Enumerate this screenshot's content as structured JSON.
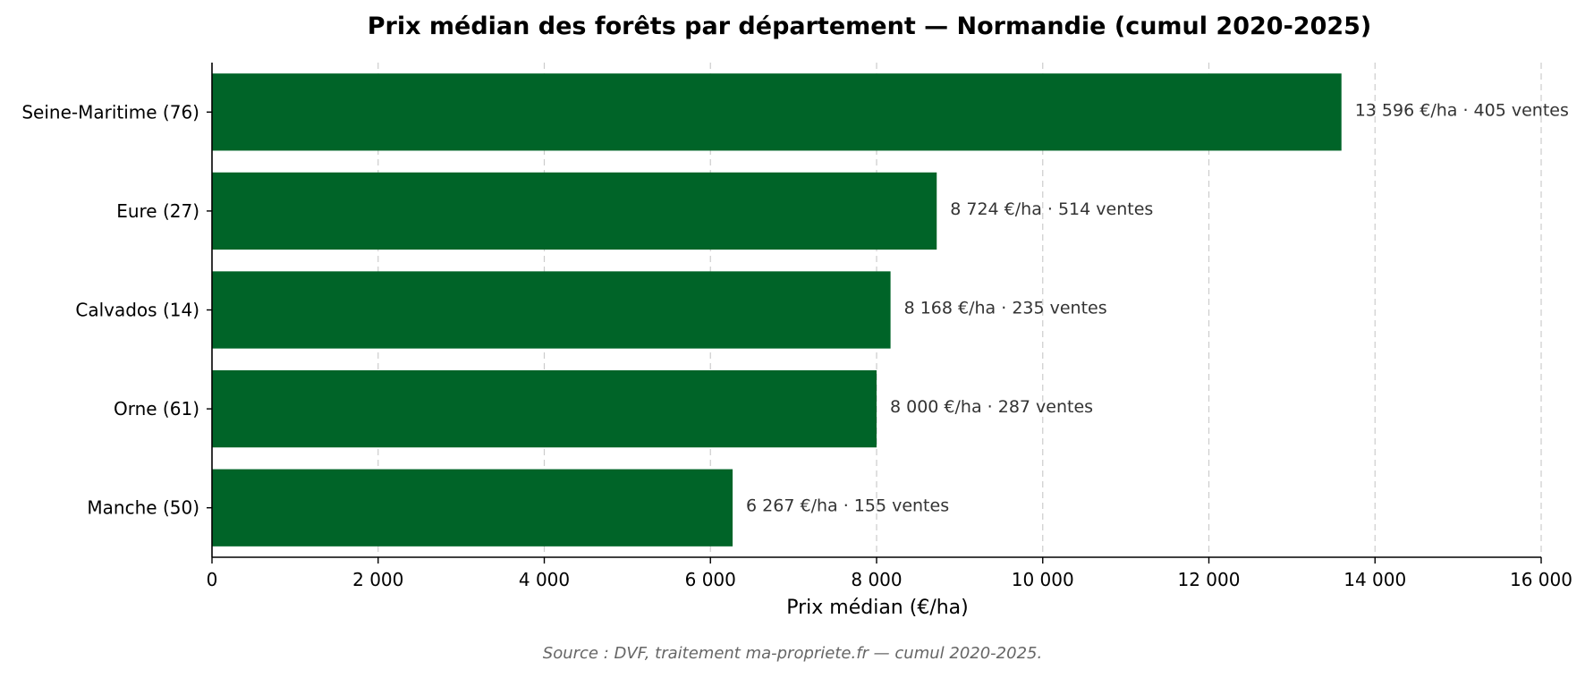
{
  "chart_data": {
    "type": "bar",
    "orientation": "horizontal",
    "title": "Prix médian des forêts par département — Normandie (cumul 2020-2025)",
    "xlabel": "Prix médian (€/ha)",
    "ylabel": "",
    "xlim": [
      0,
      16000
    ],
    "xticks": [
      0,
      2000,
      4000,
      6000,
      8000,
      10000,
      12000,
      14000,
      16000
    ],
    "xtick_labels": [
      "0",
      "2 000",
      "4 000",
      "6 000",
      "8 000",
      "10 000",
      "12 000",
      "14 000",
      "16 000"
    ],
    "grid": "vertical dashed",
    "bar_color": "#006428",
    "categories": [
      "Seine-Maritime (76)",
      "Eure (27)",
      "Calvados (14)",
      "Orne (61)",
      "Manche (50)"
    ],
    "values": [
      13596,
      8724,
      8168,
      8000,
      6267
    ],
    "sales": [
      405,
      514,
      235,
      287,
      155
    ],
    "data_labels": [
      "13 596 €/ha · 405 ventes",
      "8 724 €/ha · 514 ventes",
      "8 168 €/ha · 235 ventes",
      "8 000 €/ha · 287 ventes",
      "6 267 €/ha · 155 ventes"
    ],
    "source": "Source : DVF, traitement ma-propriete.fr — cumul 2020-2025."
  }
}
